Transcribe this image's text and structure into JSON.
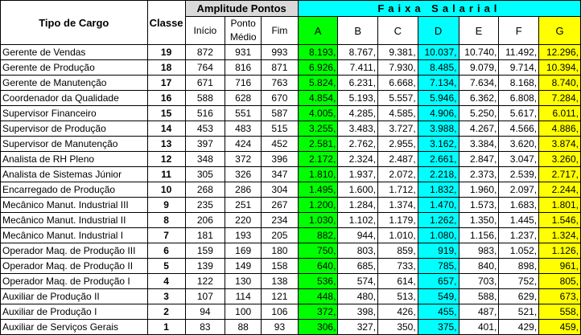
{
  "header": {
    "tipo": "Tipo de Cargo",
    "classe": "Classe",
    "amplitude": "Amplitude Pontos",
    "inicio": "Início",
    "ponto_medio": "Ponto Médio",
    "fim": "Fim",
    "faixa": "Faixa Salarial",
    "letters": [
      "A",
      "B",
      "C",
      "D",
      "E",
      "F",
      "G"
    ]
  },
  "colors": {
    "A": "#00ff00",
    "D": "#00ffff",
    "G": "#ffff00",
    "faixa_header": "#00ffff",
    "amplitude_header": "#d9d9d9"
  },
  "rows": [
    {
      "cargo": "Gerente de Vendas",
      "classe": "19",
      "inicio": "872",
      "medio": "931",
      "fim": "993",
      "vals": [
        "8.193,",
        "8.767,",
        "9.381,",
        "10.037,",
        "10.740,",
        "11.492,",
        "12.296,"
      ]
    },
    {
      "cargo": "Gerente de Produção",
      "classe": "18",
      "inicio": "764",
      "medio": "816",
      "fim": "871",
      "vals": [
        "6.926,",
        "7.411,",
        "7.930,",
        "8.485,",
        "9.079,",
        "9.714,",
        "10.394,"
      ]
    },
    {
      "cargo": "Gerente de Manutenção",
      "classe": "17",
      "inicio": "671",
      "medio": "716",
      "fim": "763",
      "vals": [
        "5.824,",
        "6.231,",
        "6.668,",
        "7.134,",
        "7.634,",
        "8.168,",
        "8.740,"
      ]
    },
    {
      "cargo": "Coordenador da Qualidade",
      "classe": "16",
      "inicio": "588",
      "medio": "628",
      "fim": "670",
      "vals": [
        "4.854,",
        "5.193,",
        "5.557,",
        "5.946,",
        "6.362,",
        "6.808,",
        "7.284,"
      ]
    },
    {
      "cargo": "Supervisor Financeiro",
      "classe": "15",
      "inicio": "516",
      "medio": "551",
      "fim": "587",
      "vals": [
        "4.005,",
        "4.285,",
        "4.585,",
        "4.906,",
        "5.250,",
        "5.617,",
        "6.011,"
      ]
    },
    {
      "cargo": "Supervisor de Produção",
      "classe": "14",
      "inicio": "453",
      "medio": "483",
      "fim": "515",
      "vals": [
        "3.255,",
        "3.483,",
        "3.727,",
        "3.988,",
        "4.267,",
        "4.566,",
        "4.886,"
      ]
    },
    {
      "cargo": "Supervisor de Manutenção",
      "classe": "13",
      "inicio": "397",
      "medio": "424",
      "fim": "452",
      "vals": [
        "2.581,",
        "2.762,",
        "2.955,",
        "3.162,",
        "3.384,",
        "3.620,",
        "3.874,"
      ]
    },
    {
      "cargo": "Analista de RH Pleno",
      "classe": "12",
      "inicio": "348",
      "medio": "372",
      "fim": "396",
      "vals": [
        "2.172,",
        "2.324,",
        "2.487,",
        "2.661,",
        "2.847,",
        "3.047,",
        "3.260,"
      ]
    },
    {
      "cargo": "Analista de Sistemas Júnior",
      "classe": "11",
      "inicio": "305",
      "medio": "326",
      "fim": "347",
      "vals": [
        "1.810,",
        "1.937,",
        "2.072,",
        "2.218,",
        "2.373,",
        "2.539,",
        "2.717,"
      ]
    },
    {
      "cargo": "Encarregado de Produção",
      "classe": "10",
      "inicio": "268",
      "medio": "286",
      "fim": "304",
      "vals": [
        "1.495,",
        "1.600,",
        "1.712,",
        "1.832,",
        "1.960,",
        "2.097,",
        "2.244,"
      ]
    },
    {
      "cargo": "Mecânico Manut. Industrial III",
      "classe": "9",
      "inicio": "235",
      "medio": "251",
      "fim": "267",
      "vals": [
        "1.200,",
        "1.284,",
        "1.374,",
        "1.470,",
        "1.573,",
        "1.683,",
        "1.801,"
      ]
    },
    {
      "cargo": "Mecânico Manut. Industrial II",
      "classe": "8",
      "inicio": "206",
      "medio": "220",
      "fim": "234",
      "vals": [
        "1.030,",
        "1.102,",
        "1.179,",
        "1.262,",
        "1.350,",
        "1.445,",
        "1.546,"
      ]
    },
    {
      "cargo": "Mecânico Manut. Industrial I",
      "classe": "7",
      "inicio": "181",
      "medio": "193",
      "fim": "205",
      "vals": [
        "882,",
        "944,",
        "1.010,",
        "1.080,",
        "1.156,",
        "1.237,",
        "1.324,"
      ]
    },
    {
      "cargo": "Operador Maq. de Produção III",
      "classe": "6",
      "inicio": "159",
      "medio": "169",
      "fim": "180",
      "vals": [
        "750,",
        "803,",
        "859,",
        "919,",
        "983,",
        "1.052,",
        "1.126,"
      ]
    },
    {
      "cargo": "Operador Maq. de Produção II",
      "classe": "5",
      "inicio": "139",
      "medio": "149",
      "fim": "158",
      "vals": [
        "640,",
        "685,",
        "733,",
        "785,",
        "840,",
        "898,",
        "961,"
      ]
    },
    {
      "cargo": "Operador Maq. de Produção I",
      "classe": "4",
      "inicio": "122",
      "medio": "130",
      "fim": "138",
      "vals": [
        "536,",
        "574,",
        "614,",
        "657,",
        "703,",
        "752,",
        "805,"
      ]
    },
    {
      "cargo": "Auxiliar de Produção II",
      "classe": "3",
      "inicio": "107",
      "medio": "114",
      "fim": "121",
      "vals": [
        "448,",
        "480,",
        "513,",
        "549,",
        "588,",
        "629,",
        "673,"
      ]
    },
    {
      "cargo": "Auxiliar de Produção I",
      "classe": "2",
      "inicio": "94",
      "medio": "100",
      "fim": "106",
      "vals": [
        "372,",
        "398,",
        "426,",
        "455,",
        "487,",
        "521,",
        "558,"
      ]
    },
    {
      "cargo": "Auxiliar de Serviços Gerais",
      "classe": "1",
      "inicio": "83",
      "medio": "88",
      "fim": "93",
      "vals": [
        "306,",
        "327,",
        "350,",
        "375,",
        "401,",
        "429,",
        "459,"
      ]
    }
  ]
}
